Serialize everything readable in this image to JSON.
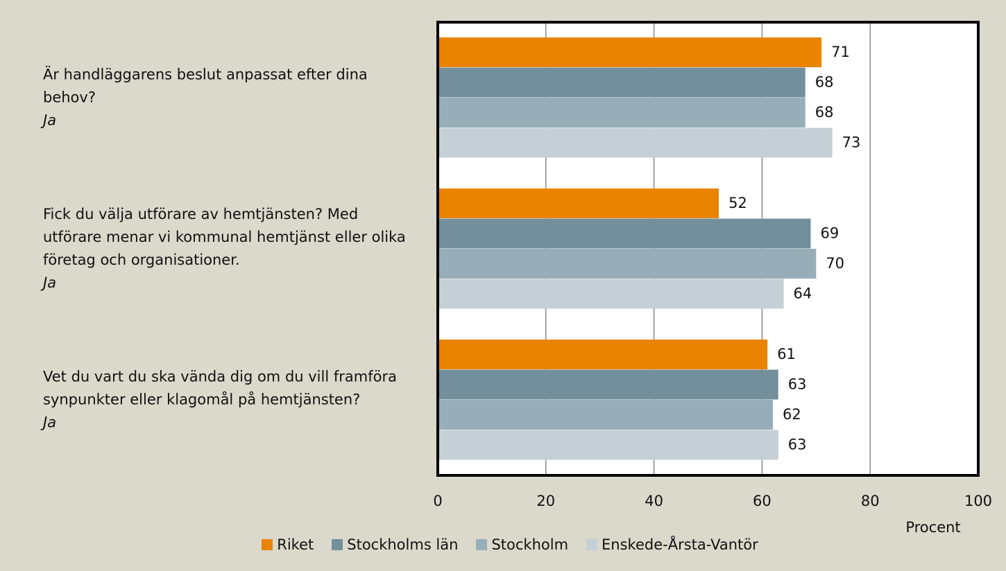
{
  "chart_data": {
    "type": "barh",
    "categories": [
      "Är handläggarens beslut anpassat efter dina behov?",
      "Fick du välja utförare av hemtjänsten? Med utförare menar vi kommunal hemtjänst eller olika företag och organisationer.",
      "Vet du vart du ska vända dig om du vill framföra synpunkter eller klagomål på hemtjänsten?"
    ],
    "category_notes": [
      "Ja",
      "Ja",
      "Ja"
    ],
    "series": [
      {
        "name": "Riket",
        "color": "#e98300",
        "values": [
          71,
          52,
          61
        ]
      },
      {
        "name": "Stockholms län",
        "color": "#738f9c",
        "values": [
          68,
          69,
          63
        ]
      },
      {
        "name": "Stockholm",
        "color": "#97aeb8",
        "values": [
          68,
          70,
          62
        ]
      },
      {
        "name": "Enskede-Årsta-Vantör",
        "color": "#c4d0d6",
        "values": [
          73,
          64,
          63
        ]
      }
    ],
    "xlim": [
      0,
      100
    ],
    "xticks": [
      0,
      20,
      40,
      60,
      80,
      100
    ],
    "x_label": "Procent",
    "grid": true
  }
}
